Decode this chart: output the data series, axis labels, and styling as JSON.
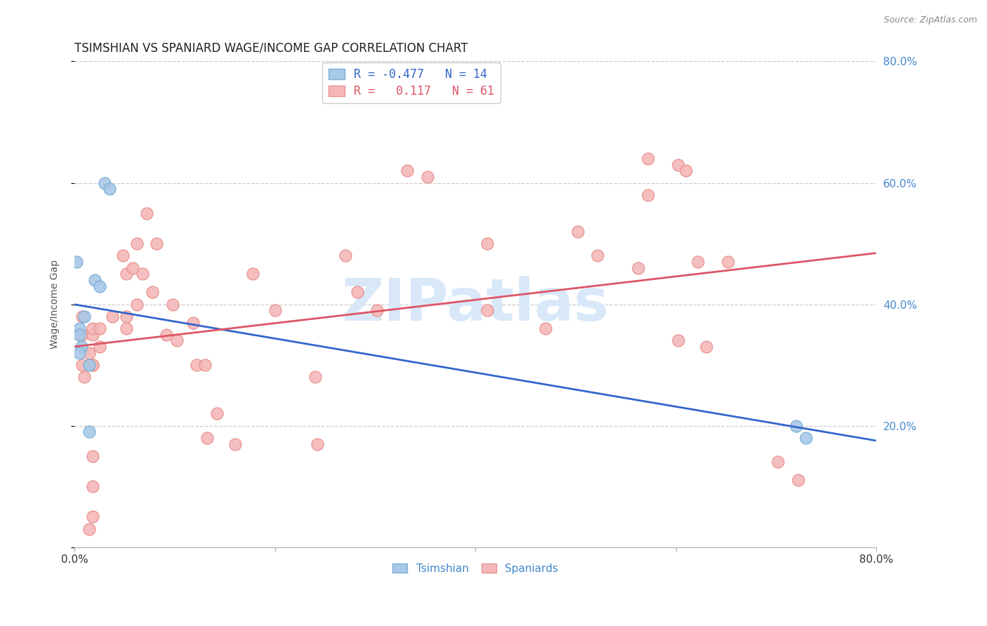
{
  "title": "TSIMSHIAN VS SPANIARD WAGE/INCOME GAP CORRELATION CHART",
  "source": "Source: ZipAtlas.com",
  "ylabel": "Wage/Income Gap",
  "watermark": "ZIPatlas",
  "legend_blue_r": "R = -0.477",
  "legend_blue_n": "N = 14",
  "legend_pink_r": "R =   0.117",
  "legend_pink_n": "N = 61",
  "tsimshian_x": [
    0.005,
    0.01,
    0.03,
    0.035,
    0.02,
    0.025,
    0.005,
    0.007,
    0.005,
    0.015,
    0.015,
    0.72,
    0.73,
    0.002
  ],
  "tsimshian_y": [
    0.36,
    0.38,
    0.6,
    0.59,
    0.44,
    0.43,
    0.35,
    0.33,
    0.32,
    0.3,
    0.19,
    0.2,
    0.18,
    0.47
  ],
  "spaniards_x": [
    0.015,
    0.008,
    0.01,
    0.018,
    0.008,
    0.018,
    0.025,
    0.018,
    0.008,
    0.018,
    0.025,
    0.018,
    0.018,
    0.015,
    0.018,
    0.038,
    0.048,
    0.052,
    0.068,
    0.052,
    0.058,
    0.062,
    0.052,
    0.072,
    0.062,
    0.078,
    0.082,
    0.098,
    0.092,
    0.102,
    0.118,
    0.122,
    0.13,
    0.132,
    0.142,
    0.16,
    0.178,
    0.2,
    0.24,
    0.242,
    0.27,
    0.282,
    0.302,
    0.332,
    0.352,
    0.412,
    0.412,
    0.47,
    0.502,
    0.522,
    0.562,
    0.572,
    0.572,
    0.602,
    0.61,
    0.602,
    0.622,
    0.63,
    0.652,
    0.702,
    0.722
  ],
  "spaniards_y": [
    0.32,
    0.3,
    0.28,
    0.3,
    0.35,
    0.3,
    0.33,
    0.35,
    0.38,
    0.36,
    0.36,
    0.1,
    0.05,
    0.03,
    0.15,
    0.38,
    0.48,
    0.45,
    0.45,
    0.36,
    0.46,
    0.5,
    0.38,
    0.55,
    0.4,
    0.42,
    0.5,
    0.4,
    0.35,
    0.34,
    0.37,
    0.3,
    0.3,
    0.18,
    0.22,
    0.17,
    0.45,
    0.39,
    0.28,
    0.17,
    0.48,
    0.42,
    0.39,
    0.62,
    0.61,
    0.39,
    0.5,
    0.36,
    0.52,
    0.48,
    0.46,
    0.64,
    0.58,
    0.63,
    0.62,
    0.34,
    0.47,
    0.33,
    0.47,
    0.14,
    0.11
  ],
  "xlim": [
    0.0,
    0.8
  ],
  "ylim": [
    0.0,
    0.8
  ],
  "xticks": [
    0.0,
    0.2,
    0.4,
    0.6,
    0.8
  ],
  "yticks": [
    0.2,
    0.4,
    0.6,
    0.8
  ],
  "ytick_labels_right": [
    "20.0%",
    "40.0%",
    "60.0%",
    "80.0%"
  ],
  "blue_color": "#A8C8E8",
  "pink_color": "#F5B8B8",
  "blue_marker_edge": "#7BAFD4",
  "pink_marker_edge": "#E89090",
  "blue_line_color": "#3366CC",
  "pink_line_color": "#DD5566",
  "background_color": "#FFFFFF",
  "grid_color": "#CCCCCC",
  "title_fontsize": 12,
  "axis_label_fontsize": 10,
  "legend_fontsize": 12,
  "watermark_color": "#D8E8F8",
  "watermark_fontsize": 60,
  "right_tick_color": "#4488CC"
}
